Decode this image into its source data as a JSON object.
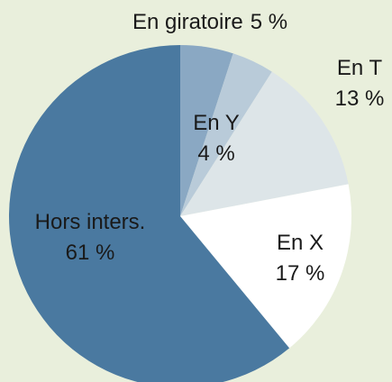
{
  "chart_data": {
    "type": "pie",
    "categories": [
      "En giratoire",
      "En Y",
      "En T",
      "En X",
      "Hors inters."
    ],
    "values": [
      5,
      4,
      13,
      17,
      61
    ],
    "value_labels": [
      "5 %",
      "4 %",
      "13 %",
      "17 %",
      "61 %"
    ],
    "colors": [
      "#8aa8c3",
      "#b9cbd9",
      "#dde5e8",
      "#ffffff",
      "#4a79a0"
    ]
  }
}
